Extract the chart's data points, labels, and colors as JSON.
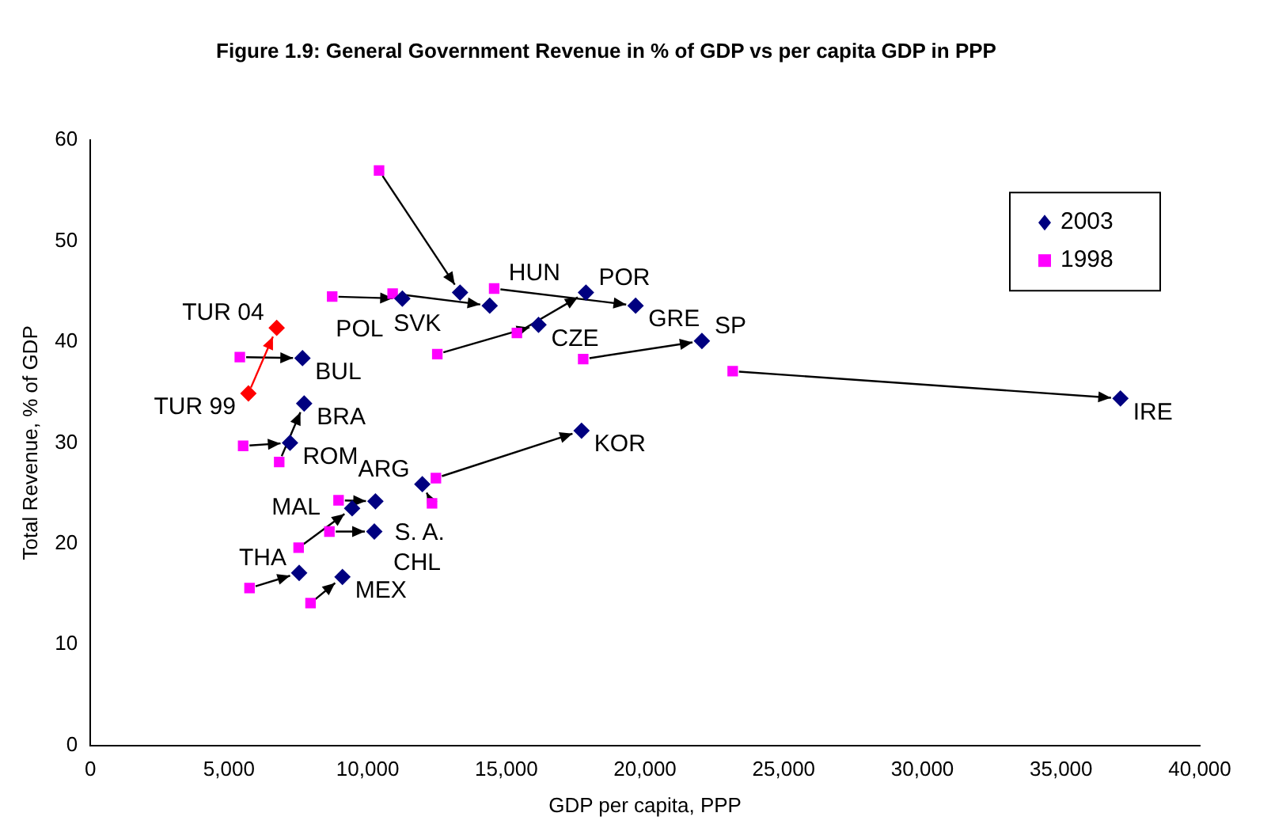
{
  "chart_data": {
    "type": "scatter",
    "title": "Figure 1.9: General Government Revenue in % of GDP vs per capita GDP in PPP",
    "xlabel": "GDP per capita, PPP",
    "ylabel": "Total Revenue, % of GDP",
    "series": [
      {
        "name": "2003",
        "color": "#000080",
        "marker": "diamond",
        "x": [
          13330,
          11250,
          14400,
          19660,
          17870,
          16160,
          22050,
          37140,
          7650,
          7710,
          7200,
          17710,
          11970,
          10280,
          9440,
          10240,
          7530,
          9090
        ],
        "values": [
          44.9,
          44.3,
          43.6,
          43.6,
          44.9,
          41.7,
          40.1,
          34.4,
          38.4,
          33.9,
          30.0,
          31.2,
          25.9,
          24.2,
          23.5,
          21.2,
          17.1,
          16.7
        ]
      },
      {
        "name": "1998",
        "color": "#ff00ff",
        "marker": "square",
        "x": [
          10410,
          8720,
          10900,
          14560,
          15380,
          12510,
          17770,
          23160,
          5390,
          6810,
          5510,
          12460,
          12320,
          8950,
          7510,
          8620,
          5740,
          7940
        ],
        "values": [
          57.0,
          44.5,
          44.8,
          45.3,
          40.9,
          38.8,
          38.3,
          37.1,
          38.5,
          28.1,
          29.7,
          26.5,
          24.0,
          24.3,
          19.6,
          21.2,
          15.6,
          14.1
        ]
      },
      {
        "color": "#ff0000",
        "marker": "diamond",
        "x": [
          5700,
          6720
        ],
        "values": [
          34.9,
          41.4
        ]
      }
    ],
    "xlim": [
      0,
      40000
    ],
    "xticks": [
      0,
      {
        "value": 5000,
        "label": "5,000"
      },
      {
        "value": 10000,
        "label": "10,000"
      },
      {
        "value": 15000,
        "label": "15,000"
      },
      {
        "value": 20000,
        "label": "20,000"
      },
      {
        "value": 25000,
        "label": "25,000"
      },
      {
        "value": 30000,
        "label": "30,000"
      },
      {
        "value": 35000,
        "label": "35,000"
      },
      {
        "value": 40000,
        "label": "40,000"
      }
    ],
    "ylim": [
      0,
      60
    ],
    "yticks": [
      0,
      10,
      20,
      30,
      40,
      50,
      60
    ],
    "grid": false,
    "legend": "top right",
    "annotations": [
      {
        "text": "SVK",
        "x": 13330,
        "y": 44.9
      },
      {
        "text": "POL",
        "x": 11250,
        "y": 44.3
      },
      {
        "text": "HUN",
        "x": 14400,
        "y": 43.6
      },
      {
        "text": "GRE",
        "x": 19660,
        "y": 43.6
      },
      {
        "text": "POR",
        "x": 17870,
        "y": 44.9
      },
      {
        "text": "CZE",
        "x": 16160,
        "y": 41.7
      },
      {
        "text": "SP",
        "x": 22050,
        "y": 40.1
      },
      {
        "text": "IRE",
        "x": 37140,
        "y": 34.4
      },
      {
        "text": "TUR 04",
        "x": 6720,
        "y": 41.4
      },
      {
        "text": "BUL",
        "x": 7650,
        "y": 38.4
      },
      {
        "text": "TUR 99",
        "x": 5700,
        "y": 34.9
      },
      {
        "text": "BRA",
        "x": 7710,
        "y": 33.9
      },
      {
        "text": "ROM",
        "x": 7200,
        "y": 30.0
      },
      {
        "text": "KOR",
        "x": 17710,
        "y": 31.2
      },
      {
        "text": "ARG",
        "x": 11970,
        "y": 25.9
      },
      {
        "text": "S. A.",
        "x": 10280,
        "y": 24.2
      },
      {
        "text": "MAL",
        "x": 9440,
        "y": 23.5
      },
      {
        "text": "CHL",
        "x": 10240,
        "y": 21.2
      },
      {
        "text": "THA",
        "x": 7530,
        "y": 17.1
      },
      {
        "text": "MEX",
        "x": 9090,
        "y": 16.7
      }
    ]
  }
}
